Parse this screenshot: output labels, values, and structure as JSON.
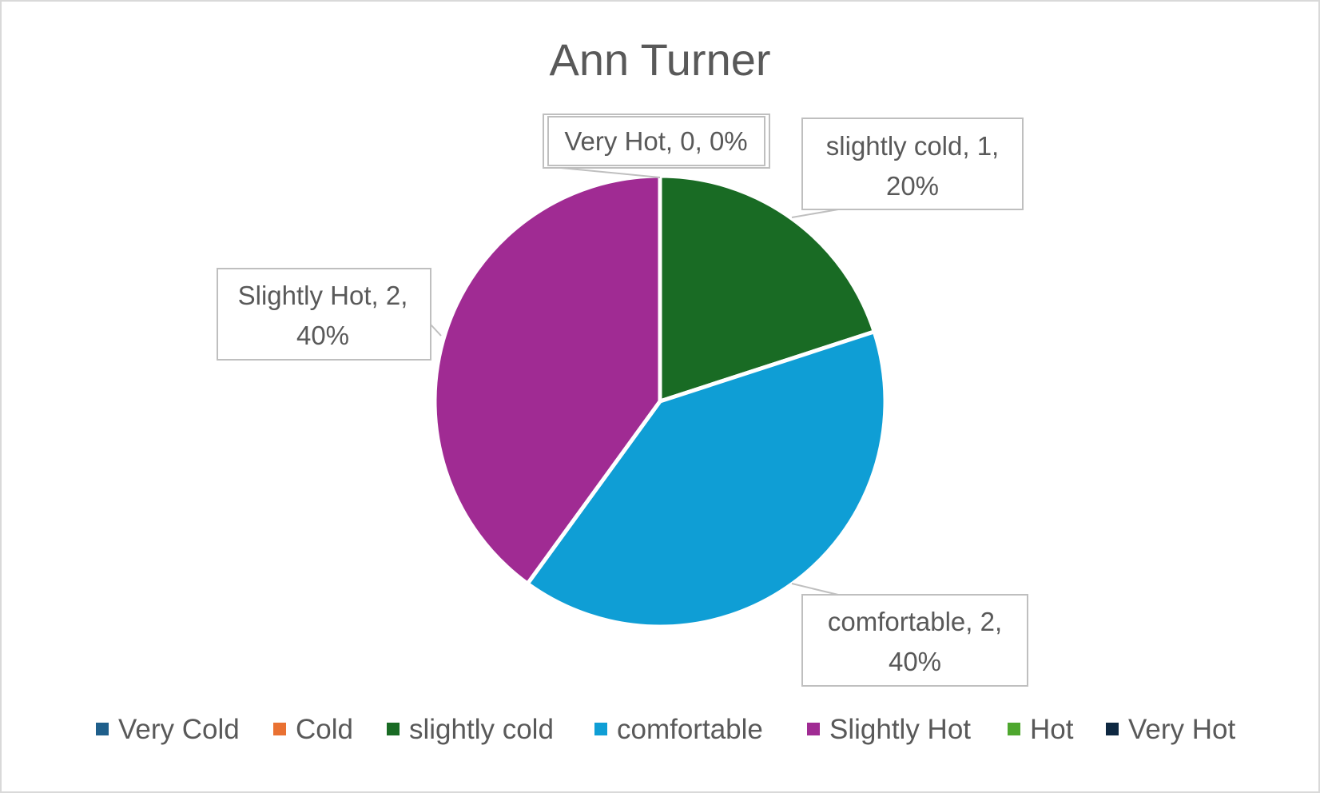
{
  "chart_data": {
    "type": "pie",
    "title": "Ann Turner",
    "categories": [
      "Very Cold",
      "Cold",
      "slightly cold",
      "comfortable",
      "Slightly Hot",
      "Hot",
      "Very Hot"
    ],
    "values": [
      0,
      0,
      1,
      2,
      2,
      0,
      0
    ],
    "percentages": [
      "0%",
      "0%",
      "20%",
      "40%",
      "40%",
      "0%",
      "0%"
    ],
    "colors": [
      "#1f5f8b",
      "#e97132",
      "#196b24",
      "#0f9ed5",
      "#a02b93",
      "#4ea72e",
      "#0e2841"
    ],
    "data_labels": [
      {
        "category": "Very Hot",
        "lines": [
          "Very Hot, 0, 0%"
        ]
      },
      {
        "category": "slightly cold",
        "lines": [
          "slightly cold, 1,",
          "20%"
        ]
      },
      {
        "category": "comfortable",
        "lines": [
          "comfortable, 2,",
          "40%"
        ]
      },
      {
        "category": "Slightly Hot",
        "lines": [
          "Slightly Hot, 2,",
          "40%"
        ]
      }
    ],
    "legend": {
      "position": "bottom",
      "entries": [
        "Very Cold",
        "Cold",
        "slightly cold",
        "comfortable",
        "Slightly Hot",
        "Hot",
        "Very Hot"
      ]
    }
  }
}
